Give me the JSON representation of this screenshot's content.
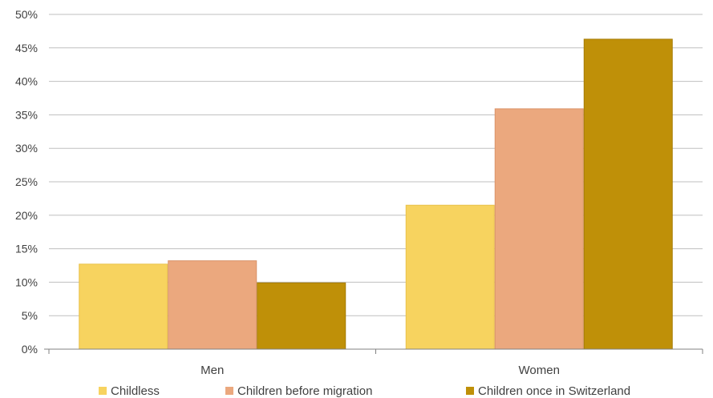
{
  "chart_data": {
    "type": "bar",
    "title": "",
    "xlabel": "",
    "ylabel": "",
    "categories": [
      "Men",
      "Women"
    ],
    "series": [
      {
        "name": "Childless",
        "values": [
          12.7,
          21.5
        ],
        "color": "#F7D35F",
        "border": "#E9C24A"
      },
      {
        "name": "Children before migration",
        "values": [
          13.2,
          35.9
        ],
        "color": "#EBA87E",
        "border": "#D9946A"
      },
      {
        "name": "Children once in Switzerland",
        "values": [
          9.9,
          46.3
        ],
        "color": "#BF9008",
        "border": "#A67C05"
      }
    ],
    "ylim": [
      0,
      50
    ],
    "yticks": [
      "0%",
      "5%",
      "10%",
      "15%",
      "20%",
      "25%",
      "30%",
      "35%",
      "40%",
      "45%",
      "50%"
    ],
    "grid": true,
    "legend": "bottom",
    "colors": {
      "gridline": "#BFBFBF",
      "axis": "#808080",
      "text": "#404040"
    }
  }
}
